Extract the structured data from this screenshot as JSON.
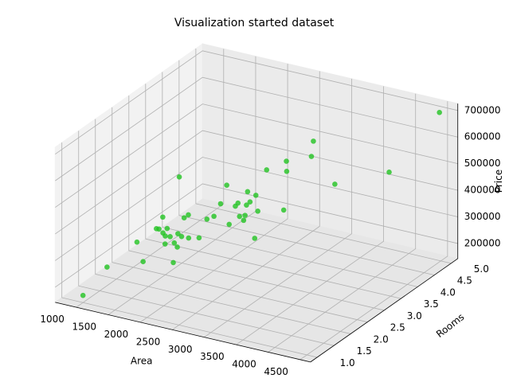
{
  "chart_data": {
    "type": "scatter3d",
    "title": "Visualization started dataset",
    "x_label": "Area",
    "y_label": "Rooms",
    "z_label": "Price",
    "color": "#22c322",
    "x": [
      2104,
      1600,
      2400,
      1416,
      3000,
      1985,
      1534,
      1427,
      1380,
      1494,
      1940,
      2000,
      1890,
      4478,
      1268,
      2300,
      1320,
      1236,
      2609,
      3031,
      1767,
      1888,
      1604,
      1962,
      3890,
      1100,
      1458,
      2526,
      2200,
      2637,
      1839,
      1000,
      2040,
      3137,
      1811,
      1437,
      1239,
      2132,
      4215,
      2162,
      1664,
      2238,
      2567,
      1200,
      852,
      1852,
      1203
    ],
    "y": [
      3,
      3,
      3,
      2,
      4,
      4,
      3,
      3,
      3,
      3,
      4,
      3,
      3,
      5,
      3,
      4,
      2,
      3,
      4,
      4,
      3,
      2,
      3,
      4,
      3,
      3,
      3,
      3,
      3,
      3,
      2,
      1,
      4,
      3,
      4,
      3,
      3,
      4,
      4,
      4,
      2,
      3,
      4,
      3,
      2,
      4,
      3
    ],
    "z": [
      399900,
      329900,
      369000,
      232000,
      539900,
      299900,
      314900,
      198999,
      212000,
      242500,
      239999,
      347000,
      329999,
      699900,
      259900,
      449900,
      299900,
      199900,
      499998,
      599000,
      252900,
      255000,
      242900,
      259900,
      573900,
      249900,
      464500,
      469000,
      475000,
      299900,
      349900,
      169900,
      314900,
      579900,
      285900,
      249900,
      229900,
      345000,
      549000,
      287000,
      368500,
      329900,
      314000,
      299000,
      179900,
      299900,
      239500
    ],
    "xlim": [
      670,
      4660
    ],
    "ylim": [
      0.8,
      5.2
    ],
    "zlim": [
      143000,
      726000
    ],
    "xticks": [
      1000,
      1500,
      2000,
      2500,
      3000,
      3500,
      4000,
      4500
    ],
    "yticks": [
      {
        "value": 1,
        "label": "1.0"
      },
      {
        "value": 1.5,
        "label": "1.5"
      },
      {
        "value": 2,
        "label": "2.0"
      },
      {
        "value": 2.5,
        "label": "2.5"
      },
      {
        "value": 3,
        "label": "3.0"
      },
      {
        "value": 3.5,
        "label": "3.5"
      },
      {
        "value": 4,
        "label": "4.0"
      },
      {
        "value": 4.5,
        "label": "4.5"
      },
      {
        "value": 5,
        "label": "5.0"
      }
    ],
    "zticks": [
      200000,
      300000,
      400000,
      500000,
      600000,
      700000
    ]
  }
}
